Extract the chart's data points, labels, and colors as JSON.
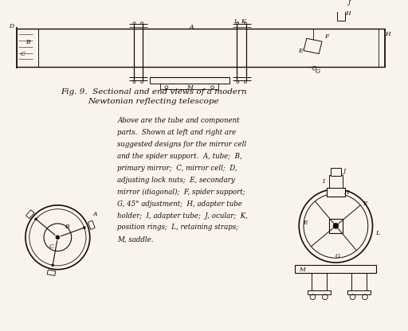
{
  "bg_color": "#f8f4ed",
  "line_color": "#1a0a00",
  "title_line1": "Fig. 9.  Sectional and end views of a modern",
  "title_line2": "Newtonian reflecting telescope",
  "font_family": "serif",
  "cap_lines": [
    "Above are the tube and component",
    "parts.  Shown at left and right are",
    "suggested designs for the mirror cell",
    "and the spider support.  A, tube;  B,",
    "primary mirror;  C, mirror cell;  D,",
    "adjusting lock nuts;  E, secondary",
    "mirror (diagonal);  F, spider support;",
    "G, 45° adjustment;  H, adapter tube",
    "holder;  I, adapter tube;  J, ocular;  K,",
    "position rings;  L, retaining straps;",
    "M, saddle."
  ]
}
